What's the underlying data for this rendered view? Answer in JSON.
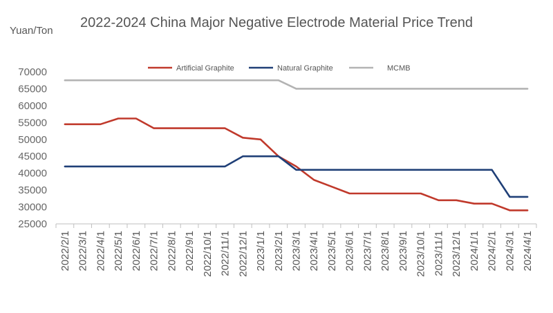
{
  "chart_data": {
    "type": "line",
    "title": "2022-2024 China Major Negative Electrode Material Price Trend",
    "ylabel": "Yuan/Ton",
    "ylim": [
      25000,
      70000
    ],
    "yticks": [
      70000,
      65000,
      60000,
      55000,
      50000,
      45000,
      40000,
      35000,
      30000,
      25000
    ],
    "legend_position": "top",
    "grid": false,
    "categories": [
      "2022/2/1",
      "2022/3/1",
      "2022/4/1",
      "2022/5/1",
      "2022/6/1",
      "2022/7/1",
      "2022/8/1",
      "2022/9/1",
      "2022/10/1",
      "2022/11/1",
      "2022/12/1",
      "2023/1/1",
      "2023/2/1",
      "2023/3/1",
      "2023/4/1",
      "2023/5/1",
      "2023/6/1",
      "2023/7/1",
      "2023/8/1",
      "2023/9/1",
      "2023/10/1",
      "2023/11/1",
      "2023/12/1",
      "2024/1/1",
      "2024/2/1",
      "2024/3/1",
      "2024/4/1"
    ],
    "series": [
      {
        "name": "Artificial Graphite",
        "color": "#c0392b",
        "values": [
          54500,
          54500,
          54500,
          56200,
          56200,
          53300,
          53300,
          53300,
          53300,
          53300,
          50500,
          50000,
          45000,
          42000,
          38000,
          36000,
          34000,
          34000,
          34000,
          34000,
          34000,
          32000,
          32000,
          31000,
          31000,
          29000,
          29000
        ]
      },
      {
        "name": "Natural Graphite",
        "color": "#1f3f77",
        "values": [
          42000,
          42000,
          42000,
          42000,
          42000,
          42000,
          42000,
          42000,
          42000,
          42000,
          45000,
          45000,
          45000,
          41000,
          41000,
          41000,
          41000,
          41000,
          41000,
          41000,
          41000,
          41000,
          41000,
          41000,
          41000,
          33000,
          33000
        ]
      },
      {
        "name": "MCMB",
        "color": "#b3b3b3",
        "values": [
          67500,
          67500,
          67500,
          67500,
          67500,
          67500,
          67500,
          67500,
          67500,
          67500,
          67500,
          67500,
          67500,
          65000,
          65000,
          65000,
          65000,
          65000,
          65000,
          65000,
          65000,
          65000,
          65000,
          65000,
          65000,
          65000,
          65000
        ]
      }
    ]
  }
}
